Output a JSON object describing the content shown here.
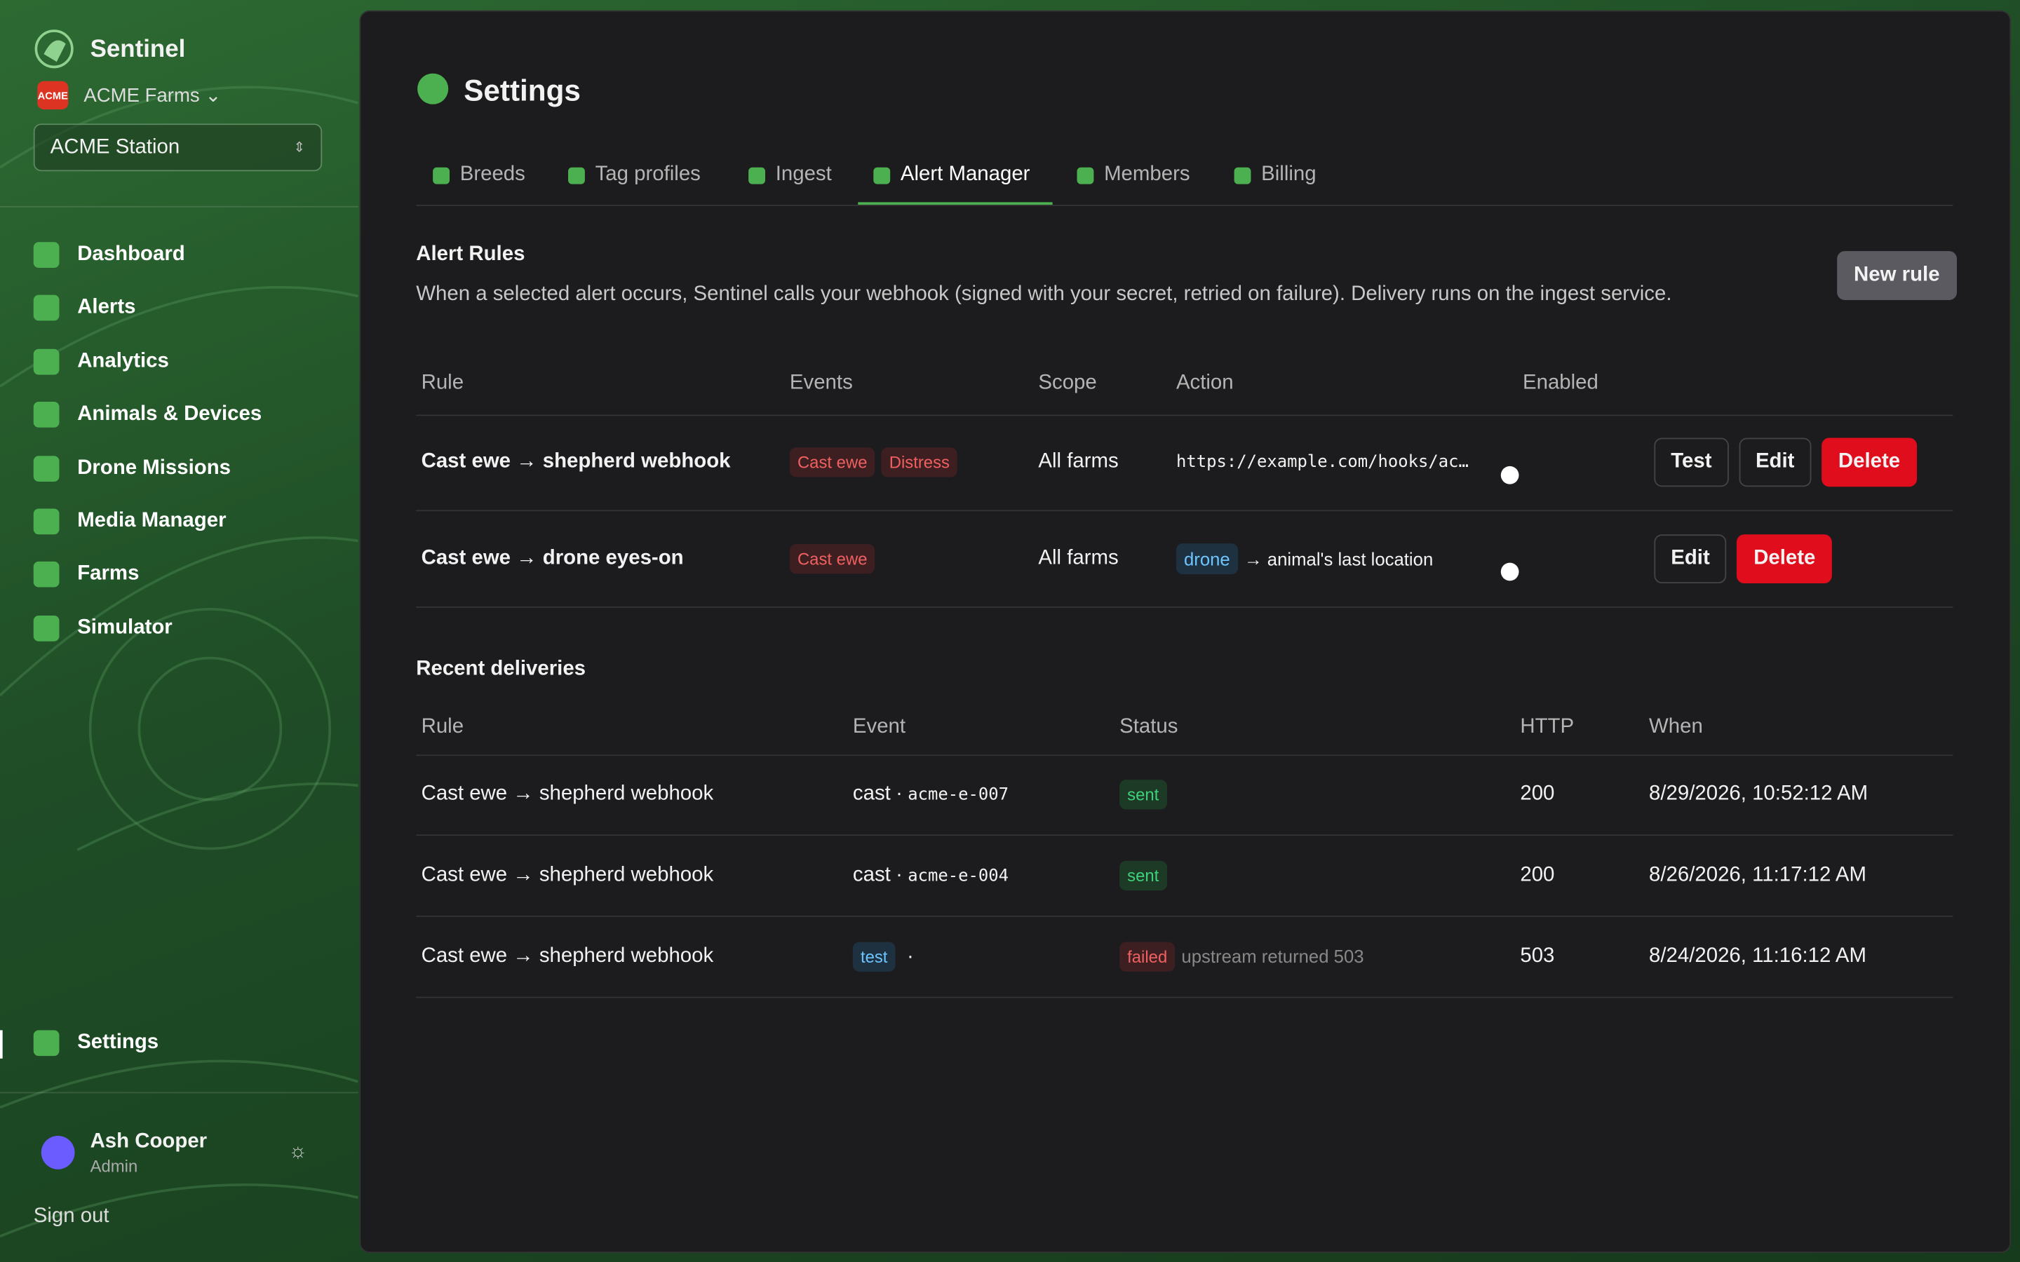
{
  "sidebar": {
    "brand": "Sentinel",
    "org_logo": "ACME",
    "org": "ACME Farms",
    "station": "ACME Station",
    "nav": [
      "Dashboard",
      "Alerts",
      "Analytics",
      "Animals & Devices",
      "Drone Missions",
      "Media Manager",
      "Farms",
      "Simulator"
    ],
    "settings": "Settings",
    "user": {
      "name": "Ash Cooper",
      "role": "Admin"
    },
    "sign_out": "Sign out"
  },
  "header": {
    "title": "Settings"
  },
  "tabs": {
    "items": [
      "Breeds",
      "Tag profiles",
      "Ingest",
      "Alert Manager",
      "Members",
      "Billing"
    ],
    "active": 3
  },
  "alert_rules": {
    "title": "Alert Rules",
    "description": "When a selected alert occurs, Sentinel calls your webhook (signed with your secret, retried on failure). Delivery runs on the ingest service.",
    "new_rule": "New rule",
    "columns": [
      "Rule",
      "Events",
      "Scope",
      "Action",
      "Enabled"
    ],
    "rows": [
      {
        "rule": "Cast ewe → shepherd webhook",
        "events": [
          "Cast ewe",
          "Distress"
        ],
        "scope": "All farms",
        "action": "https://example.com/hooks/ac…",
        "enabled": true,
        "buttons": [
          "Test",
          "Edit",
          "Delete"
        ]
      },
      {
        "rule": "Cast ewe → drone eyes-on",
        "events": [
          "Cast ewe"
        ],
        "scope": "All farms",
        "action_badge": "drone",
        "action_text": "→ animal's last location",
        "enabled": true,
        "buttons": [
          "Edit",
          "Delete"
        ]
      }
    ]
  },
  "deliveries": {
    "title": "Recent deliveries",
    "columns": [
      "Rule",
      "Event",
      "Status",
      "HTTP",
      "When"
    ],
    "rows": [
      {
        "rule": "Cast ewe → shepherd webhook",
        "event": "cast",
        "separator": "·",
        "target": "acme-e-007",
        "status": "sent",
        "http": 200,
        "when": "8/29/2026, 10:52:12 AM"
      },
      {
        "rule": "Cast ewe → shepherd webhook",
        "event": "cast",
        "separator": "·",
        "target": "acme-e-004",
        "status": "sent",
        "http": 200,
        "when": "8/26/2026, 11:17:12 AM"
      },
      {
        "rule": "Cast ewe → shepherd webhook",
        "event_badge": "test",
        "separator": "·",
        "status": "failed",
        "note": "upstream returned 503",
        "http": 503,
        "when": "8/24/2026, 11:16:12 AM"
      }
    ]
  }
}
